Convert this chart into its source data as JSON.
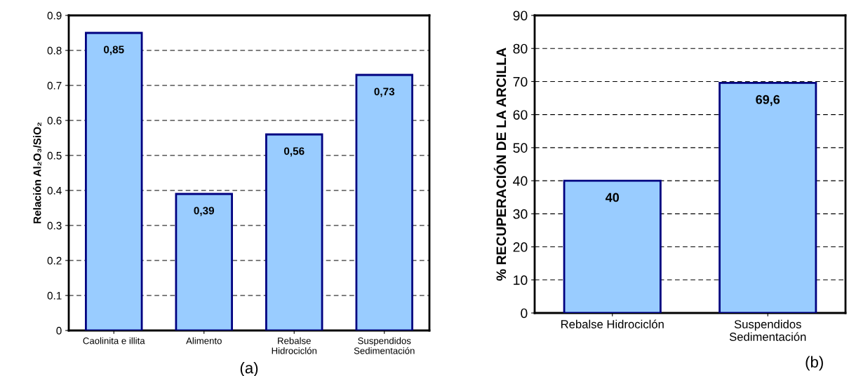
{
  "chart_data": [
    {
      "type": "bar",
      "ylabel": "Relación Al₂O₃/SiO₂",
      "categories": [
        "Caolinita e illita",
        "Alimento",
        "Rebalse\nHidrociclón",
        "Suspendidos\nSedimentación"
      ],
      "values": [
        0.85,
        0.39,
        0.56,
        0.73
      ],
      "value_labels": [
        "0,85",
        "0,39",
        "0,56",
        "0,73"
      ],
      "color": "#99ccff",
      "ylim": [
        0,
        0.9
      ],
      "yticks": [
        0,
        0.1,
        0.2,
        0.3,
        0.4,
        0.5,
        0.6,
        0.7,
        0.8,
        0.9
      ],
      "grid": "y",
      "annotations": [
        "(a)"
      ]
    },
    {
      "type": "bar",
      "ylabel": "% RECUPERACIÓN DE LA ARCILLA",
      "categories": [
        "Rebalse Hidrociclón",
        "Suspendidos\nSedimentación"
      ],
      "values": [
        40,
        69.6
      ],
      "value_labels": [
        "40",
        "69,6"
      ],
      "color": "#99ccff",
      "ylim": [
        0,
        90
      ],
      "yticks": [
        0,
        10,
        20,
        30,
        40,
        50,
        60,
        70,
        80,
        90
      ],
      "grid": "y",
      "annotations": [
        "(b)"
      ]
    }
  ]
}
